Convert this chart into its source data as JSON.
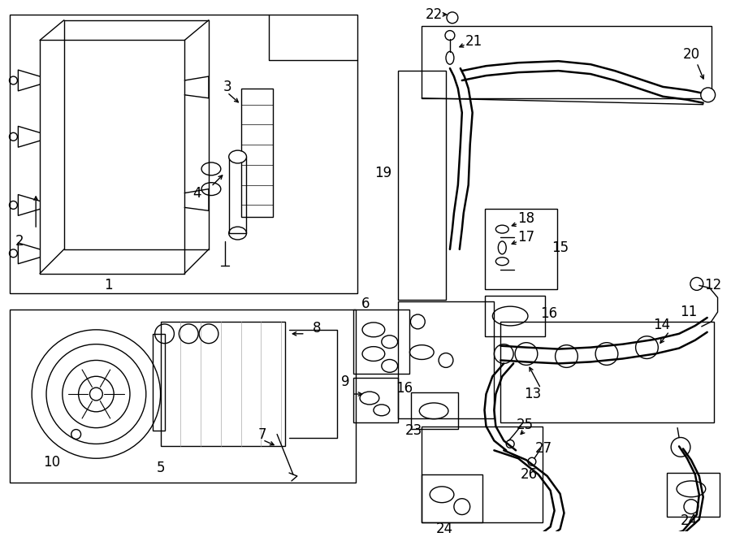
{
  "bg_color": "#ffffff",
  "lc": "#000000",
  "lw": 1.0,
  "tlw": 1.8,
  "fig_w": 9.0,
  "fig_h": 6.61,
  "dpi": 100
}
